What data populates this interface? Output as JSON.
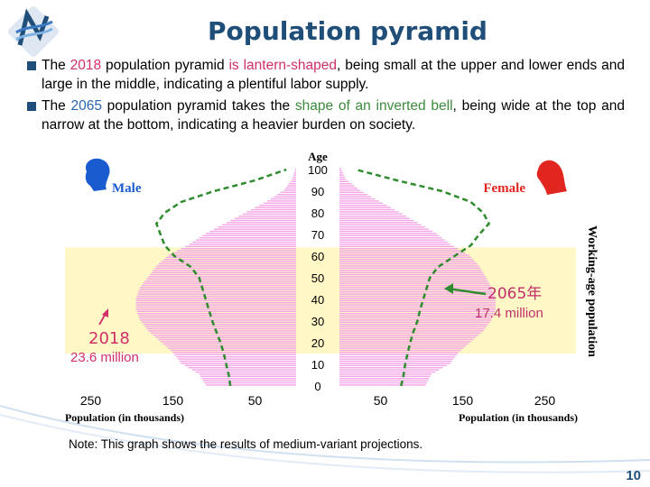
{
  "slide": {
    "title": "Population pyramid",
    "bullet1": {
      "p1": "The ",
      "year": "2018",
      "p2": " population pyramid ",
      "shape": "is lantern-shaped",
      "p3": ", being small at the upper and lower ends and large in the middle, indicating a plentiful labor supply."
    },
    "bullet2": {
      "p1": "The ",
      "year": "2065",
      "p2": " population pyramid takes the ",
      "shape": "shape of an inverted bell",
      "p3": ", being wide at the top and narrow at the bottom, indicating a heavier burden on society."
    },
    "note": "Note: This graph shows the results of medium-variant projections.",
    "page_number": "10"
  },
  "colors": {
    "title": "#1f4e79",
    "bar_2018": "#f4a6e6",
    "line_2065": "#2e8b2e",
    "working_band": "#fff7c6",
    "male_icon": "#1a5ccf",
    "female_icon": "#e0261e",
    "label_2018": "#d0306a",
    "label_2065": "#c0306a"
  },
  "chart_data": {
    "type": "population_pyramid",
    "y_axis": {
      "label": "Age",
      "ticks": [
        "0",
        "10",
        "20",
        "30",
        "40",
        "50",
        "60",
        "70",
        "80",
        "90",
        "100"
      ],
      "range": [
        0,
        100
      ]
    },
    "x_axis": {
      "label_left": "Population (in thousands)",
      "label_right": "Population (in thousands)",
      "ticks_left": [
        "250",
        "150",
        "50"
      ],
      "ticks_right": [
        "50",
        "150",
        "250"
      ],
      "range": [
        0,
        250
      ]
    },
    "legend": {
      "male": "Male",
      "female": "Female"
    },
    "working_age_band": {
      "label": "Working-age population",
      "from_age": 15,
      "to_age": 64
    },
    "annotations": [
      {
        "series": "2065",
        "label": "2065年",
        "value": "17.4 million"
      },
      {
        "series": "2018",
        "label": "2018",
        "value": "23.6 million"
      }
    ],
    "series": [
      {
        "name": "2018",
        "kind": "bars",
        "ages": [
          0,
          5,
          10,
          15,
          20,
          25,
          30,
          35,
          40,
          45,
          50,
          55,
          60,
          65,
          70,
          75,
          80,
          85,
          90,
          95,
          100
        ],
        "male": [
          110,
          118,
          140,
          150,
          165,
          180,
          190,
          195,
          195,
          190,
          180,
          170,
          155,
          130,
          110,
          85,
          60,
          35,
          15,
          5,
          1
        ],
        "female": [
          105,
          112,
          135,
          145,
          160,
          175,
          185,
          190,
          190,
          185,
          178,
          170,
          158,
          135,
          118,
          95,
          72,
          48,
          25,
          8,
          2
        ]
      },
      {
        "name": "2065",
        "kind": "line",
        "ages": [
          0,
          5,
          10,
          15,
          20,
          25,
          30,
          35,
          40,
          45,
          50,
          55,
          60,
          65,
          70,
          75,
          80,
          85,
          90,
          95,
          100
        ],
        "male": [
          80,
          82,
          85,
          88,
          92,
          97,
          102,
          106,
          110,
          114,
          118,
          128,
          148,
          160,
          165,
          170,
          160,
          140,
          100,
          50,
          12
        ],
        "female": [
          75,
          78,
          80,
          83,
          86,
          90,
          95,
          98,
          102,
          106,
          110,
          120,
          140,
          160,
          170,
          182,
          175,
          160,
          125,
          70,
          20
        ]
      }
    ]
  }
}
